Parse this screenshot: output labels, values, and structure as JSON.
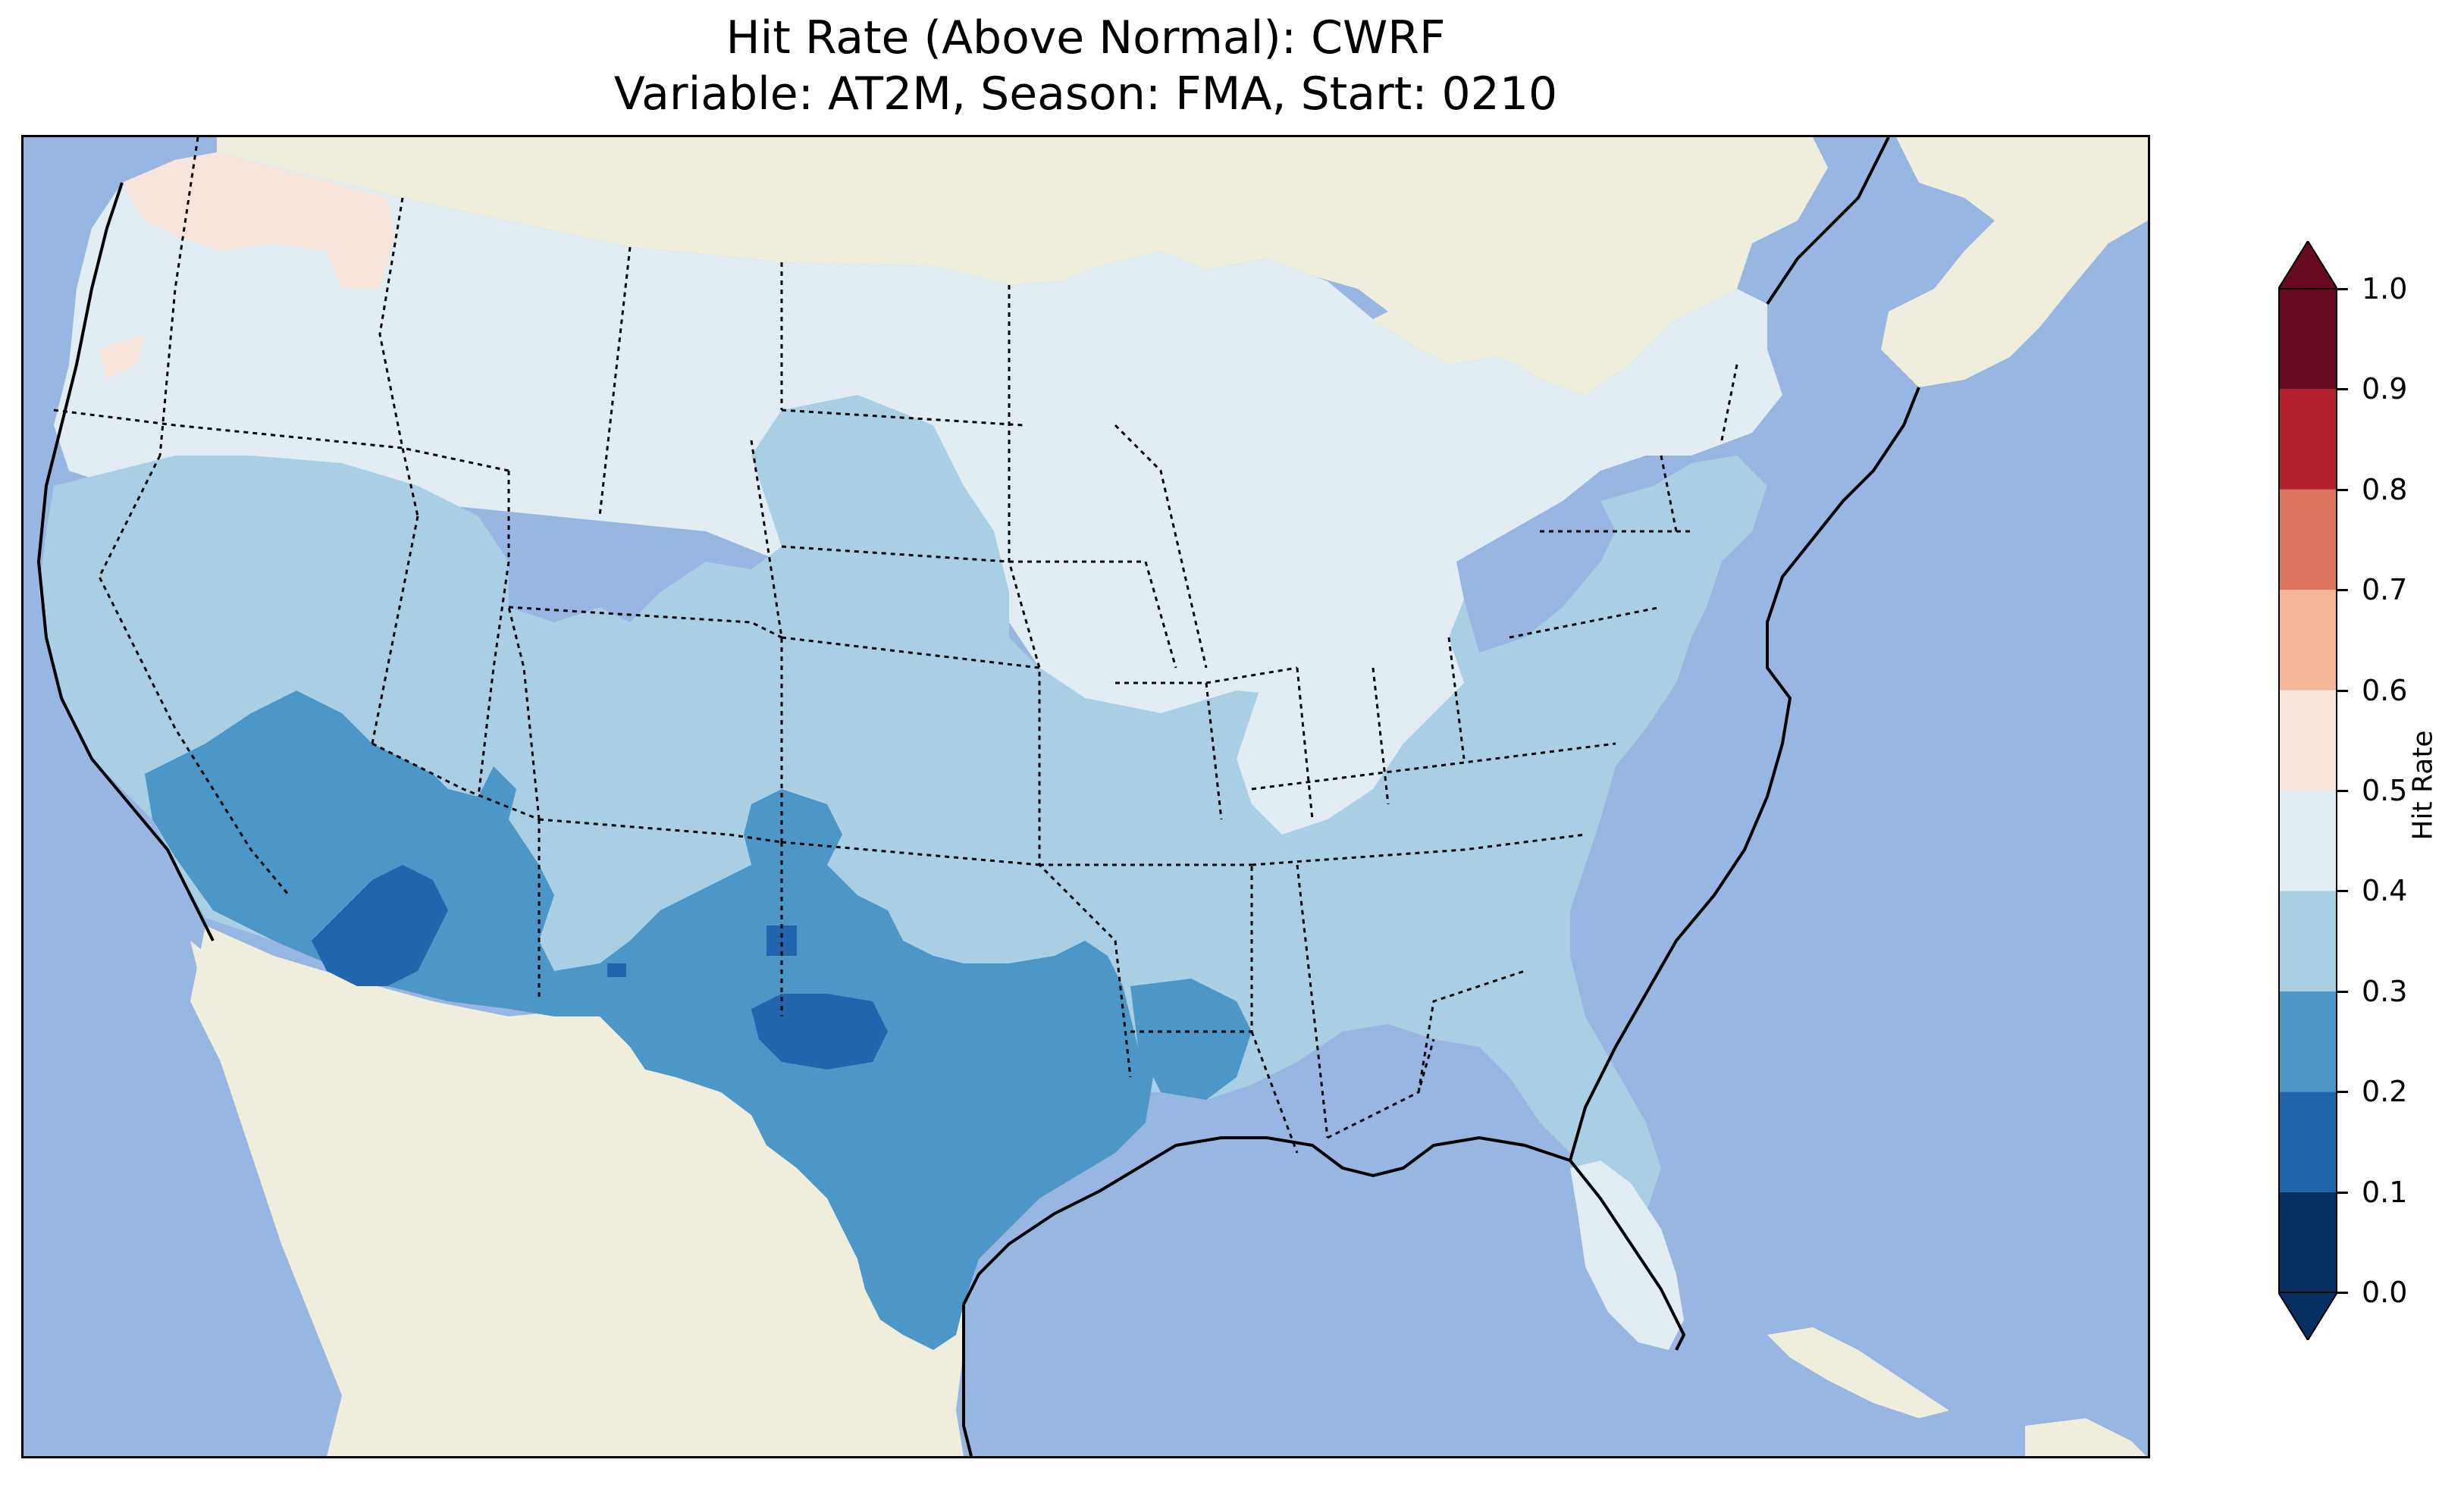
{
  "title_line1": "Hit Rate (Above Normal): CWRF",
  "title_line2": "Variable: AT2M, Season: FMA, Start: 0210",
  "colorbar": {
    "label": "Hit Rate",
    "ticks": [
      "0.0",
      "0.1",
      "0.2",
      "0.3",
      "0.4",
      "0.5",
      "0.6",
      "0.7",
      "0.8",
      "0.9",
      "1.0"
    ],
    "bins": [
      {
        "range": [
          0.0,
          0.1
        ],
        "color": "#053061"
      },
      {
        "range": [
          0.1,
          0.2
        ],
        "color": "#2166ac"
      },
      {
        "range": [
          0.2,
          0.3
        ],
        "color": "#4d97c8"
      },
      {
        "range": [
          0.3,
          0.4
        ],
        "color": "#a9cfe5"
      },
      {
        "range": [
          0.4,
          0.5
        ],
        "color": "#e1ecf3"
      },
      {
        "range": [
          0.5,
          0.6
        ],
        "color": "#f7e5dc"
      },
      {
        "range": [
          0.6,
          0.7
        ],
        "color": "#f5b799"
      },
      {
        "range": [
          0.7,
          0.8
        ],
        "color": "#de7560"
      },
      {
        "range": [
          0.8,
          0.9
        ],
        "color": "#b2202b"
      },
      {
        "range": [
          0.9,
          1.0
        ],
        "color": "#670a1f"
      }
    ],
    "extend_low_color": "#053061",
    "extend_high_color": "#670a1f"
  },
  "map": {
    "ocean_color": "#97b6e1",
    "land_color": "#efeddb",
    "regions": [
      {
        "name": "Pacific Northwest coast",
        "hit_rate_bin": "0.5-0.6"
      },
      {
        "name": "Northern Rockies and Plains",
        "hit_rate_bin": "0.4-0.5"
      },
      {
        "name": "Upper Midwest and Great Lakes",
        "hit_rate_bin": "0.4-0.5"
      },
      {
        "name": "Western interior",
        "hit_rate_bin": "0.3-0.4"
      },
      {
        "name": "Southwest Arizona",
        "hit_rate_bin": "0.1-0.2"
      },
      {
        "name": "West Texas",
        "hit_rate_bin": "0.1-0.2"
      },
      {
        "name": "New Mexico and Texas",
        "hit_rate_bin": "0.2-0.3"
      },
      {
        "name": "Southeast",
        "hit_rate_bin": "0.3-0.4"
      },
      {
        "name": "Florida peninsula",
        "hit_rate_bin": "0.4-0.5"
      },
      {
        "name": "Northeast",
        "hit_rate_bin": "0.3-0.4"
      }
    ]
  }
}
